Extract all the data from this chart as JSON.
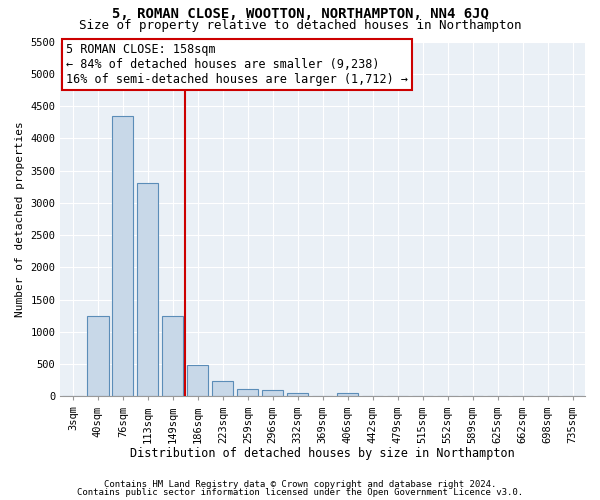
{
  "title": "5, ROMAN CLOSE, WOOTTON, NORTHAMPTON, NN4 6JQ",
  "subtitle": "Size of property relative to detached houses in Northampton",
  "xlabel": "Distribution of detached houses by size in Northampton",
  "ylabel": "Number of detached properties",
  "footnote1": "Contains HM Land Registry data © Crown copyright and database right 2024.",
  "footnote2": "Contains public sector information licensed under the Open Government Licence v3.0.",
  "bin_labels": [
    "3sqm",
    "40sqm",
    "76sqm",
    "113sqm",
    "149sqm",
    "186sqm",
    "223sqm",
    "259sqm",
    "296sqm",
    "332sqm",
    "369sqm",
    "406sqm",
    "442sqm",
    "479sqm",
    "515sqm",
    "552sqm",
    "589sqm",
    "625sqm",
    "662sqm",
    "698sqm",
    "735sqm"
  ],
  "bar_heights": [
    0,
    1250,
    4350,
    3300,
    1250,
    480,
    240,
    120,
    90,
    50,
    0,
    50,
    0,
    0,
    0,
    0,
    0,
    0,
    0,
    0,
    0
  ],
  "bar_color": "#c8d8e8",
  "bar_edgecolor": "#5b8db8",
  "bar_linewidth": 0.8,
  "vline_color": "#cc0000",
  "vline_linewidth": 1.5,
  "annotation_text": "5 ROMAN CLOSE: 158sqm\n← 84% of detached houses are smaller (9,238)\n16% of semi-detached houses are larger (1,712) →",
  "annotation_box_color": "#ffffff",
  "annotation_box_edgecolor": "#cc0000",
  "ylim": [
    0,
    5500
  ],
  "yticks": [
    0,
    500,
    1000,
    1500,
    2000,
    2500,
    3000,
    3500,
    4000,
    4500,
    5000,
    5500
  ],
  "background_color": "#eaf0f6",
  "grid_color": "#ffffff",
  "title_fontsize": 10,
  "subtitle_fontsize": 9,
  "xlabel_fontsize": 8.5,
  "ylabel_fontsize": 8,
  "tick_fontsize": 7.5,
  "annotation_fontsize": 8.5,
  "footnote_fontsize": 6.5
}
